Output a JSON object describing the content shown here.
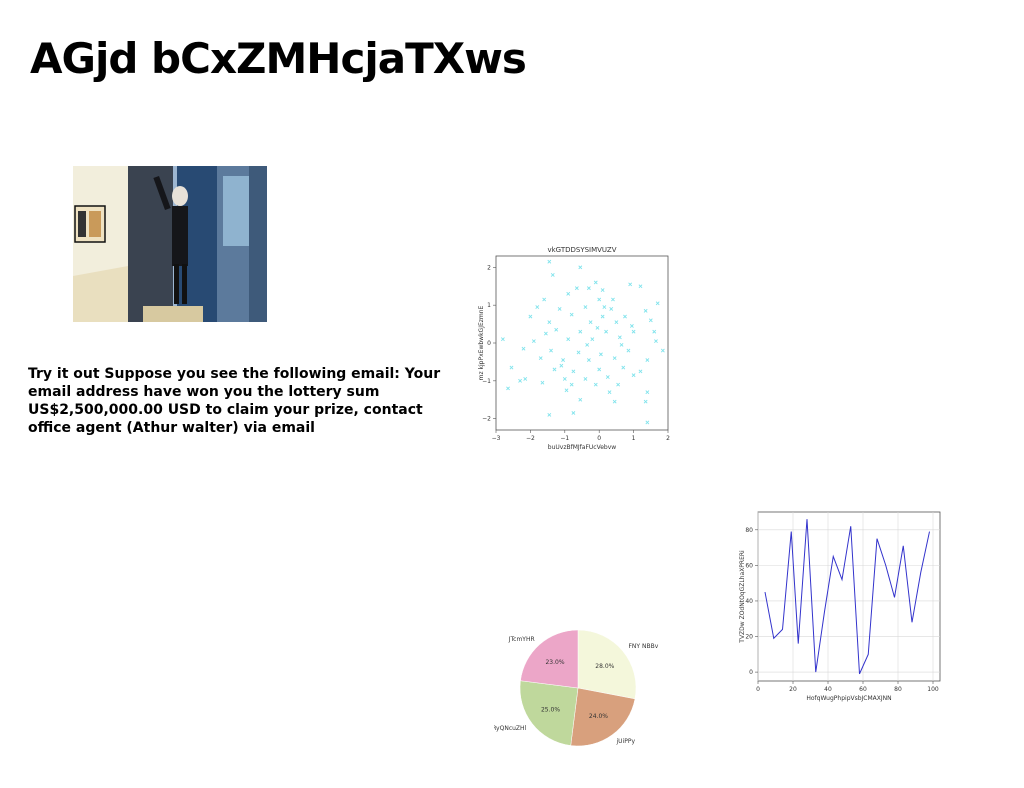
{
  "page": {
    "title": "AGjd bCxZMHcjaTXws",
    "paragraph": "Try it out Suppose you see the following email: Your email address have won you the lottery sum US$2,500,000.00 USD to claim your prize, contact office agent (Athur walter) via email"
  },
  "colors": {
    "scatter_marker": "#7fe3ec",
    "line": "#3333cc"
  },
  "chart_data": [
    {
      "type": "scatter",
      "title": "vkGTDDSYSIMVUZV",
      "xlabel": "buUvzBfMJfaFUcVebvw",
      "ylabel": "mz kjpPxEwbwkGJEzmnE",
      "xlim": [
        -3,
        2
      ],
      "ylim": [
        -2.3,
        2.3
      ],
      "xticks": [
        -3,
        -2,
        -1,
        0,
        1,
        2
      ],
      "yticks": [
        -2,
        -1,
        0,
        1,
        2
      ],
      "marker": "x",
      "points": [
        [
          -1.45,
          2.15
        ],
        [
          -0.55,
          2.0
        ],
        [
          -1.35,
          1.8
        ],
        [
          0.9,
          1.55
        ],
        [
          1.2,
          1.5
        ],
        [
          -0.1,
          1.6
        ],
        [
          -0.3,
          1.45
        ],
        [
          0.1,
          1.4
        ],
        [
          -1.6,
          1.15
        ],
        [
          -0.9,
          1.3
        ],
        [
          0.0,
          1.15
        ],
        [
          1.7,
          1.05
        ],
        [
          -1.8,
          0.95
        ],
        [
          -1.15,
          0.9
        ],
        [
          -0.4,
          0.95
        ],
        [
          0.35,
          0.9
        ],
        [
          1.35,
          0.85
        ],
        [
          -2.0,
          0.7
        ],
        [
          -0.8,
          0.75
        ],
        [
          0.1,
          0.7
        ],
        [
          0.75,
          0.7
        ],
        [
          -1.45,
          0.55
        ],
        [
          -0.25,
          0.55
        ],
        [
          0.5,
          0.55
        ],
        [
          1.5,
          0.6
        ],
        [
          -1.25,
          0.35
        ],
        [
          -0.55,
          0.3
        ],
        [
          0.2,
          0.3
        ],
        [
          1.0,
          0.3
        ],
        [
          -2.8,
          0.1
        ],
        [
          -1.9,
          0.05
        ],
        [
          -0.9,
          0.1
        ],
        [
          -0.2,
          0.1
        ],
        [
          0.6,
          0.15
        ],
        [
          1.65,
          0.05
        ],
        [
          -2.2,
          -0.15
        ],
        [
          -1.4,
          -0.2
        ],
        [
          -0.6,
          -0.25
        ],
        [
          0.05,
          -0.3
        ],
        [
          0.85,
          -0.2
        ],
        [
          1.85,
          -0.2
        ],
        [
          -1.7,
          -0.4
        ],
        [
          -1.05,
          -0.45
        ],
        [
          -0.3,
          -0.45
        ],
        [
          0.45,
          -0.4
        ],
        [
          1.4,
          -0.45
        ],
        [
          -2.55,
          -0.65
        ],
        [
          -1.3,
          -0.7
        ],
        [
          -0.75,
          -0.75
        ],
        [
          0.0,
          -0.7
        ],
        [
          0.7,
          -0.65
        ],
        [
          1.2,
          -0.75
        ],
        [
          -2.15,
          -0.95
        ],
        [
          -1.0,
          -0.95
        ],
        [
          -0.4,
          -0.95
        ],
        [
          0.25,
          -0.9
        ],
        [
          1.0,
          -0.85
        ],
        [
          -1.65,
          -1.05
        ],
        [
          -0.8,
          -1.1
        ],
        [
          -0.1,
          -1.1
        ],
        [
          0.55,
          -1.1
        ],
        [
          -2.65,
          -1.2
        ],
        [
          -0.95,
          -1.25
        ],
        [
          0.3,
          -1.3
        ],
        [
          1.4,
          -1.3
        ],
        [
          -0.55,
          -1.5
        ],
        [
          0.45,
          -1.55
        ],
        [
          1.35,
          -1.55
        ],
        [
          -0.75,
          -1.85
        ],
        [
          -1.45,
          -1.9
        ],
        [
          1.4,
          -2.1
        ],
        [
          -1.1,
          -0.6
        ],
        [
          0.95,
          0.45
        ],
        [
          -0.05,
          0.4
        ],
        [
          -1.55,
          0.25
        ],
        [
          0.65,
          -0.05
        ],
        [
          -0.35,
          -0.05
        ],
        [
          0.15,
          0.95
        ],
        [
          -0.65,
          1.45
        ],
        [
          1.6,
          0.3
        ],
        [
          -2.3,
          -1.0
        ],
        [
          0.4,
          1.15
        ]
      ]
    },
    {
      "type": "pie",
      "slices": [
        {
          "label": "FNY NBBv",
          "value": 28.0,
          "display": "28.0%",
          "color": "#f4f7db"
        },
        {
          "label": "jUiPPy",
          "value": 24.0,
          "display": "24.0%",
          "color": "#d8a07d"
        },
        {
          "label": "RyQNcuZHl",
          "value": 25.0,
          "display": "25.0%",
          "color": "#bfd89c"
        },
        {
          "label": "JTcmYHR",
          "value": 23.0,
          "display": "23.0%",
          "color": "#eca6c8"
        }
      ]
    },
    {
      "type": "line",
      "xlabel": "HofqWugPhpipVsbJCMAXJNN",
      "ylabel": "TVZDw ZOdNtOqGZLhaXPRERi",
      "xlim": [
        0,
        104
      ],
      "ylim": [
        -5,
        90
      ],
      "xticks": [
        0,
        20,
        40,
        60,
        80,
        100
      ],
      "yticks": [
        0,
        20,
        40,
        60,
        80
      ],
      "grid": true,
      "x": [
        4,
        9,
        14,
        19,
        23,
        28,
        33,
        38,
        43,
        48,
        53,
        58,
        63,
        68,
        73,
        78,
        83,
        88,
        93,
        98
      ],
      "y": [
        45,
        19,
        24,
        79,
        16,
        86,
        0,
        34,
        65,
        52,
        82,
        -1,
        10,
        75,
        60,
        42,
        71,
        28,
        56,
        79
      ]
    }
  ]
}
